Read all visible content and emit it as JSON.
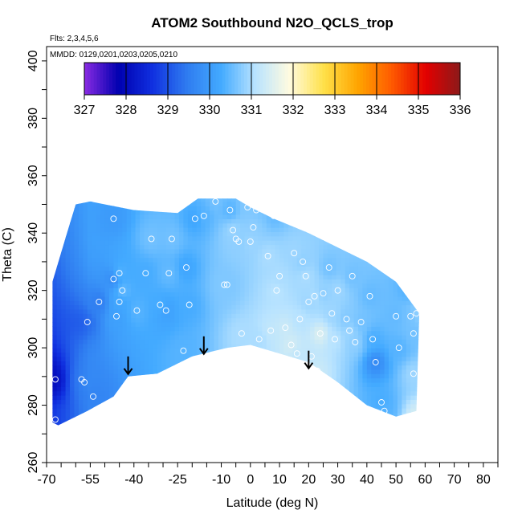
{
  "chart_data": {
    "type": "heatmap",
    "title": "ATOM2 Southbound N2O_QCLS_trop",
    "flights_label": "Flts: 2,3,4,5,6",
    "dates_label": "MMDD: 0129,0201,0203,0205,0210",
    "xlabel": "Latitude (deg N)",
    "ylabel": "Theta (C)",
    "xlim": [
      -70,
      85
    ],
    "ylim": [
      260,
      405
    ],
    "x_tick_labels": [
      "-70",
      "-55",
      "-40",
      "-25",
      "-10",
      "0",
      "10",
      "20",
      "30",
      "40",
      "50",
      "60",
      "70",
      "80"
    ],
    "y_tick_labels": [
      "260",
      "280",
      "300",
      "320",
      "340",
      "360",
      "380",
      "400"
    ],
    "colorbar": {
      "min": 327,
      "max": 336,
      "tick_labels": [
        "327",
        "328",
        "329",
        "330",
        "331",
        "332",
        "333",
        "334",
        "335",
        "336"
      ],
      "colors": [
        "#8a2be2",
        "#0000b0",
        "#1030e0",
        "#2f7cf0",
        "#43aaff",
        "#b8e3ff",
        "#fffbe0",
        "#ffe14a",
        "#ffa500",
        "#ff5a00",
        "#e20000",
        "#8b1a1a"
      ]
    },
    "boundary_upper": [
      [
        -68,
        323
      ],
      [
        -63,
        340
      ],
      [
        -60,
        350
      ],
      [
        -55,
        351
      ],
      [
        -50,
        350
      ],
      [
        -40,
        348
      ],
      [
        -25,
        347
      ],
      [
        -18,
        352
      ],
      [
        -5,
        352
      ],
      [
        0,
        349
      ],
      [
        8,
        345
      ],
      [
        20,
        340
      ],
      [
        30,
        335
      ],
      [
        40,
        330
      ],
      [
        50,
        323
      ],
      [
        58,
        312
      ]
    ],
    "boundary_lower": [
      [
        57,
        278
      ],
      [
        50,
        276
      ],
      [
        40,
        280
      ],
      [
        30,
        288
      ],
      [
        20,
        295
      ],
      [
        10,
        298
      ],
      [
        0,
        301
      ],
      [
        -8,
        300
      ],
      [
        -20,
        297
      ],
      [
        -32,
        291
      ],
      [
        -42,
        290
      ],
      [
        -47,
        283
      ],
      [
        -56,
        278
      ],
      [
        -66,
        273
      ],
      [
        -68,
        274
      ]
    ],
    "samples": [
      {
        "lat": -67,
        "theta": 289,
        "n2o": 328.8
      },
      {
        "lat": -67,
        "theta": 275,
        "n2o": 329.5
      },
      {
        "lat": -58,
        "theta": 289,
        "n2o": 329.7
      },
      {
        "lat": -57,
        "theta": 288,
        "n2o": 329.7
      },
      {
        "lat": -56,
        "theta": 309,
        "n2o": 329.3
      },
      {
        "lat": -54,
        "theta": 283,
        "n2o": 329.6
      },
      {
        "lat": -52,
        "theta": 316,
        "n2o": 329.5
      },
      {
        "lat": -47,
        "theta": 345,
        "n2o": 330.0
      },
      {
        "lat": -47,
        "theta": 324,
        "n2o": 329.7
      },
      {
        "lat": -46,
        "theta": 311,
        "n2o": 330.1
      },
      {
        "lat": -45,
        "theta": 326,
        "n2o": 330.4
      },
      {
        "lat": -45,
        "theta": 316,
        "n2o": 330.2
      },
      {
        "lat": -44,
        "theta": 320,
        "n2o": 330.5
      },
      {
        "lat": -39,
        "theta": 313,
        "n2o": 330.4
      },
      {
        "lat": -36,
        "theta": 326,
        "n2o": 330.3
      },
      {
        "lat": -34,
        "theta": 338,
        "n2o": 330.6
      },
      {
        "lat": -31,
        "theta": 315,
        "n2o": 330.3
      },
      {
        "lat": -29,
        "theta": 313,
        "n2o": 330.1
      },
      {
        "lat": -28,
        "theta": 326,
        "n2o": 330.5
      },
      {
        "lat": -27,
        "theta": 338,
        "n2o": 330.6
      },
      {
        "lat": -23,
        "theta": 299,
        "n2o": 330.4
      },
      {
        "lat": -22,
        "theta": 328,
        "n2o": 330.2
      },
      {
        "lat": -21,
        "theta": 315,
        "n2o": 330.3
      },
      {
        "lat": -19,
        "theta": 345,
        "n2o": 330.2
      },
      {
        "lat": -16,
        "theta": 346,
        "n2o": 330.4
      },
      {
        "lat": -12,
        "theta": 351,
        "n2o": 330.6
      },
      {
        "lat": -9,
        "theta": 322,
        "n2o": 330.7
      },
      {
        "lat": -8,
        "theta": 322,
        "n2o": 330.7
      },
      {
        "lat": -7,
        "theta": 348,
        "n2o": 330.4
      },
      {
        "lat": -6,
        "theta": 341,
        "n2o": 330.9
      },
      {
        "lat": -5,
        "theta": 338,
        "n2o": 330.8
      },
      {
        "lat": -4,
        "theta": 337,
        "n2o": 330.8
      },
      {
        "lat": -3,
        "theta": 305,
        "n2o": 331.0
      },
      {
        "lat": -1,
        "theta": 349,
        "n2o": 330.7
      },
      {
        "lat": 0,
        "theta": 337,
        "n2o": 330.9
      },
      {
        "lat": 1,
        "theta": 342,
        "n2o": 330.8
      },
      {
        "lat": 2,
        "theta": 348,
        "n2o": 330.7
      },
      {
        "lat": 3,
        "theta": 303,
        "n2o": 331.0
      },
      {
        "lat": 4,
        "theta": 349,
        "n2o": 330.6
      },
      {
        "lat": 6,
        "theta": 332,
        "n2o": 331.0
      },
      {
        "lat": 7,
        "theta": 306,
        "n2o": 331.2
      },
      {
        "lat": 8,
        "theta": 346,
        "n2o": 330.5
      },
      {
        "lat": 9,
        "theta": 320,
        "n2o": 331.1
      },
      {
        "lat": 10,
        "theta": 325,
        "n2o": 331.0
      },
      {
        "lat": 12,
        "theta": 307,
        "n2o": 331.3
      },
      {
        "lat": 14,
        "theta": 301,
        "n2o": 331.4
      },
      {
        "lat": 15,
        "theta": 333,
        "n2o": 330.9
      },
      {
        "lat": 16,
        "theta": 298,
        "n2o": 331.2
      },
      {
        "lat": 17,
        "theta": 310,
        "n2o": 331.1
      },
      {
        "lat": 18,
        "theta": 330,
        "n2o": 330.8
      },
      {
        "lat": 19,
        "theta": 325,
        "n2o": 331.0
      },
      {
        "lat": 20,
        "theta": 316,
        "n2o": 330.9
      },
      {
        "lat": 21,
        "theta": 297,
        "n2o": 331.2
      },
      {
        "lat": 22,
        "theta": 318,
        "n2o": 331.0
      },
      {
        "lat": 23,
        "theta": 292,
        "n2o": 331.3
      },
      {
        "lat": 24,
        "theta": 305,
        "n2o": 331.5
      },
      {
        "lat": 25,
        "theta": 319,
        "n2o": 330.8
      },
      {
        "lat": 27,
        "theta": 328,
        "n2o": 330.6
      },
      {
        "lat": 28,
        "theta": 312,
        "n2o": 330.9
      },
      {
        "lat": 29,
        "theta": 303,
        "n2o": 331.1
      },
      {
        "lat": 30,
        "theta": 320,
        "n2o": 330.9
      },
      {
        "lat": 33,
        "theta": 310,
        "n2o": 330.7
      },
      {
        "lat": 34,
        "theta": 306,
        "n2o": 330.9
      },
      {
        "lat": 35,
        "theta": 325,
        "n2o": 330.6
      },
      {
        "lat": 36,
        "theta": 302,
        "n2o": 330.8
      },
      {
        "lat": 38,
        "theta": 309,
        "n2o": 330.6
      },
      {
        "lat": 41,
        "theta": 318,
        "n2o": 330.5
      },
      {
        "lat": 42,
        "theta": 303,
        "n2o": 330.3
      },
      {
        "lat": 43,
        "theta": 295,
        "n2o": 329.7
      },
      {
        "lat": 45,
        "theta": 281,
        "n2o": 330.3
      },
      {
        "lat": 46,
        "theta": 278,
        "n2o": 330.4
      },
      {
        "lat": 50,
        "theta": 311,
        "n2o": 330.5
      },
      {
        "lat": 51,
        "theta": 300,
        "n2o": 330.4
      },
      {
        "lat": 54,
        "theta": 320,
        "n2o": 330.4
      },
      {
        "lat": 55,
        "theta": 311,
        "n2o": 330.6
      },
      {
        "lat": 56,
        "theta": 305,
        "n2o": 330.6
      },
      {
        "lat": 56,
        "theta": 291,
        "n2o": 330.9
      },
      {
        "lat": 57,
        "theta": 312,
        "n2o": 330.8
      },
      {
        "lat": 57,
        "theta": 276,
        "n2o": 331.4
      }
    ],
    "arrows": [
      {
        "lat": -42,
        "theta": 297
      },
      {
        "lat": -16,
        "theta": 304
      },
      {
        "lat": 20,
        "theta": 299
      }
    ]
  }
}
